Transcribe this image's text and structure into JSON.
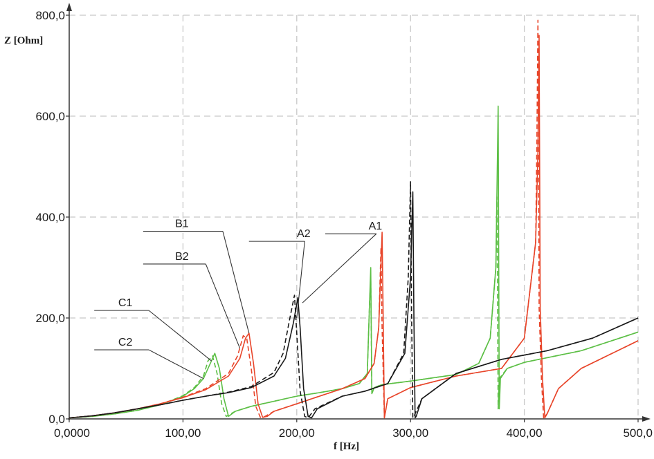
{
  "chart_data": {
    "type": "line",
    "title": "",
    "xlabel": "f [Hz]",
    "ylabel": "Z [Ohm]",
    "xlim": [
      0,
      500
    ],
    "ylim": [
      0,
      800
    ],
    "grid": true,
    "x_ticks": [
      0,
      100,
      200,
      300,
      400,
      500
    ],
    "x_tick_labels": [
      "0,0000",
      "100,00",
      "200,00",
      "300,00",
      "400,00",
      "500,0"
    ],
    "y_ticks": [
      0,
      200,
      400,
      600,
      800
    ],
    "y_tick_labels": [
      "0,0",
      "200,0",
      "400,0",
      "600,0",
      "800,0"
    ],
    "colors": {
      "black": "#1a1a1a",
      "red": "#e8452a",
      "green": "#5cbf45",
      "grid": "#c8c8c8"
    },
    "series": [
      {
        "name": "C1",
        "color": "green",
        "dash": false,
        "x": [
          0,
          20,
          40,
          60,
          80,
          100,
          110,
          118,
          124,
          128,
          132,
          136,
          140,
          146,
          160,
          180,
          200,
          220,
          240,
          255,
          262,
          264,
          265,
          266,
          268,
          275,
          300,
          340,
          360,
          370,
          375,
          377,
          378,
          379,
          385,
          400,
          450,
          500
        ],
        "y": [
          2,
          5,
          10,
          17,
          28,
          45,
          60,
          80,
          110,
          130,
          100,
          40,
          5,
          15,
          25,
          35,
          45,
          52,
          60,
          70,
          90,
          230,
          300,
          50,
          62,
          68,
          75,
          88,
          110,
          160,
          300,
          620,
          20,
          80,
          100,
          112,
          135,
          172
        ]
      },
      {
        "name": "C2",
        "color": "green",
        "dash": true,
        "x": [
          0,
          20,
          40,
          60,
          80,
          100,
          110,
          118,
          122,
          126,
          130,
          134,
          138,
          146,
          160,
          180,
          200,
          220,
          240,
          255,
          262,
          264,
          265,
          266,
          268,
          275,
          300,
          340,
          360,
          370,
          375,
          376,
          377,
          378,
          385,
          400,
          450,
          500
        ],
        "y": [
          2,
          5,
          10,
          17,
          28,
          46,
          62,
          85,
          115,
          125,
          90,
          30,
          5,
          15,
          25,
          35,
          45,
          52,
          60,
          70,
          90,
          230,
          280,
          50,
          62,
          68,
          75,
          88,
          110,
          160,
          300,
          440,
          20,
          80,
          100,
          112,
          135,
          172
        ]
      },
      {
        "name": "B1",
        "color": "red",
        "dash": false,
        "x": [
          0,
          20,
          40,
          60,
          80,
          100,
          120,
          140,
          150,
          155,
          158,
          162,
          166,
          170,
          174,
          180,
          200,
          220,
          240,
          260,
          268,
          272,
          275,
          276,
          277,
          280,
          300,
          340,
          380,
          400,
          410,
          412,
          413,
          414,
          416,
          418,
          420,
          430,
          450,
          500
        ],
        "y": [
          2,
          6,
          12,
          20,
          30,
          42,
          58,
          85,
          120,
          160,
          170,
          110,
          30,
          3,
          5,
          15,
          30,
          45,
          60,
          80,
          110,
          180,
          370,
          200,
          2,
          40,
          62,
          85,
          100,
          160,
          350,
          530,
          760,
          220,
          80,
          2,
          10,
          60,
          100,
          155
        ]
      },
      {
        "name": "B2",
        "color": "red",
        "dash": true,
        "x": [
          0,
          20,
          40,
          60,
          80,
          100,
          120,
          140,
          148,
          153,
          156,
          160,
          164,
          168,
          172,
          180,
          200,
          220,
          240,
          260,
          268,
          272,
          274,
          275,
          277,
          280,
          300,
          340,
          380,
          400,
          410,
          411,
          412,
          413,
          415,
          417,
          420,
          430,
          450,
          500
        ],
        "y": [
          2,
          6,
          12,
          20,
          30,
          43,
          60,
          90,
          125,
          165,
          160,
          100,
          25,
          3,
          5,
          15,
          30,
          45,
          60,
          80,
          110,
          180,
          340,
          180,
          2,
          40,
          62,
          85,
          100,
          160,
          350,
          540,
          790,
          220,
          80,
          2,
          10,
          60,
          100,
          155
        ]
      },
      {
        "name": "A1",
        "color": "black",
        "dash": false,
        "x": [
          0,
          20,
          40,
          60,
          80,
          100,
          120,
          140,
          160,
          180,
          190,
          197,
          201,
          203,
          206,
          210,
          213,
          218,
          240,
          260,
          280,
          295,
          300,
          302,
          303,
          304,
          305,
          310,
          340,
          380,
          420,
          460,
          500
        ],
        "y": [
          2,
          6,
          12,
          20,
          28,
          37,
          45,
          52,
          62,
          85,
          120,
          190,
          240,
          180,
          60,
          5,
          2,
          20,
          45,
          55,
          70,
          130,
          280,
          450,
          200,
          2,
          5,
          40,
          90,
          118,
          135,
          160,
          200
        ]
      },
      {
        "name": "A2",
        "color": "black",
        "dash": true,
        "x": [
          0,
          20,
          40,
          60,
          80,
          100,
          120,
          140,
          160,
          180,
          188,
          194,
          198,
          200,
          203,
          207,
          210,
          216,
          240,
          260,
          280,
          294,
          298,
          300,
          301,
          302,
          303,
          310,
          340,
          380,
          420,
          460,
          500
        ],
        "y": [
          2,
          6,
          12,
          20,
          28,
          37,
          45,
          53,
          64,
          92,
          130,
          200,
          245,
          170,
          55,
          5,
          2,
          20,
          45,
          55,
          70,
          130,
          280,
          470,
          200,
          2,
          5,
          40,
          90,
          118,
          135,
          160,
          200
        ]
      }
    ],
    "annotations": [
      {
        "text": "A1",
        "label_x": 268,
        "label_y": 371,
        "line_to_x": 205,
        "line_to_y": 230,
        "underline_from_x": 225,
        "underline_to_x": 270
      },
      {
        "text": "A2",
        "label_x": 205,
        "label_y": 356,
        "line_to_x": 200,
        "line_to_y": 200,
        "underline_from_x": 158,
        "underline_to_x": 207
      },
      {
        "text": "B1",
        "label_x": 98,
        "label_y": 376,
        "line_to_x": 158,
        "line_to_y": 170,
        "underline_from_x": 65,
        "underline_to_x": 135
      },
      {
        "text": "B2",
        "label_x": 98,
        "label_y": 311,
        "line_to_x": 150,
        "line_to_y": 140,
        "underline_from_x": 65,
        "underline_to_x": 120
      },
      {
        "text": "C1",
        "label_x": 48,
        "label_y": 219,
        "line_to_x": 125,
        "line_to_y": 115,
        "underline_from_x": 22,
        "underline_to_x": 70
      },
      {
        "text": "C2",
        "label_x": 48,
        "label_y": 141,
        "line_to_x": 118,
        "line_to_y": 80,
        "underline_from_x": 22,
        "underline_to_x": 70
      }
    ]
  }
}
